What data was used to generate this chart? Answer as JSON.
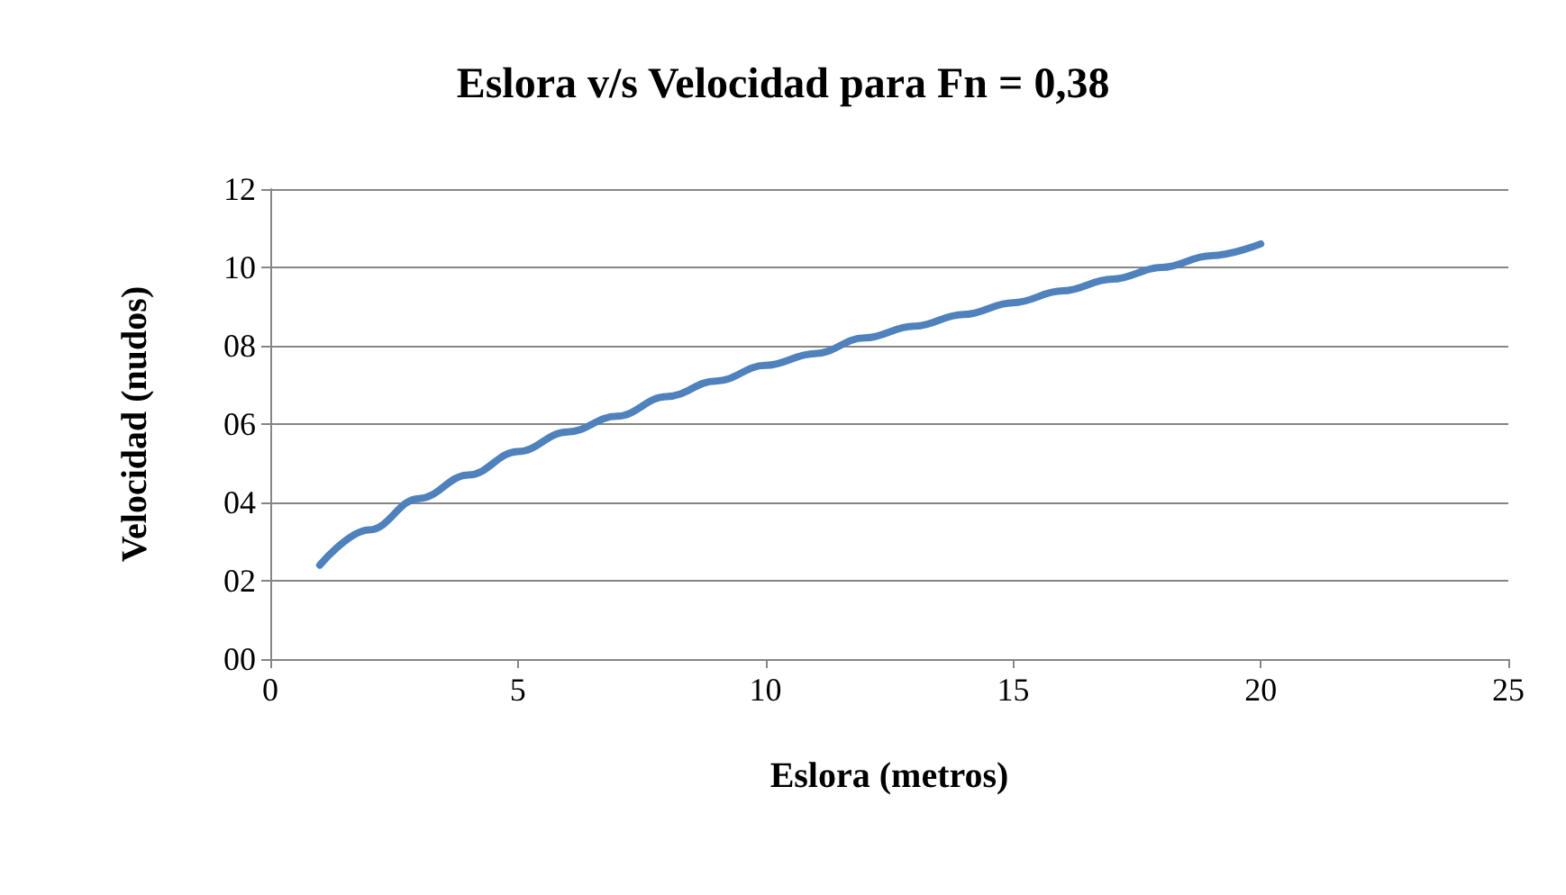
{
  "chart_data": {
    "type": "line",
    "title": "Eslora v/s Velocidad para Fn = 0,38",
    "xlabel": "Eslora (metros)",
    "ylabel": "Velocidad (nudos)",
    "x": [
      1,
      2,
      3,
      4,
      5,
      6,
      7,
      8,
      9,
      10,
      11,
      12,
      13,
      14,
      15,
      16,
      17,
      18,
      19,
      20
    ],
    "series": [
      {
        "color": "#4f81bd",
        "values": [
          2.4,
          3.3,
          4.1,
          4.7,
          5.3,
          5.8,
          6.2,
          6.7,
          7.1,
          7.5,
          7.8,
          8.2,
          8.5,
          8.8,
          9.1,
          9.4,
          9.7,
          10.0,
          10.3,
          10.6
        ]
      }
    ],
    "xlim": [
      0,
      25
    ],
    "xticks": [
      0,
      5,
      10,
      15,
      20,
      25
    ],
    "ylim": [
      0,
      12
    ],
    "yticks": [
      {
        "value": 0,
        "label": "00"
      },
      {
        "value": 2,
        "label": "02"
      },
      {
        "value": 4,
        "label": "04"
      },
      {
        "value": 6,
        "label": "06"
      },
      {
        "value": 8,
        "label": "08"
      },
      10,
      12
    ],
    "grid": "y",
    "marker": "none",
    "line_style": "solid"
  }
}
